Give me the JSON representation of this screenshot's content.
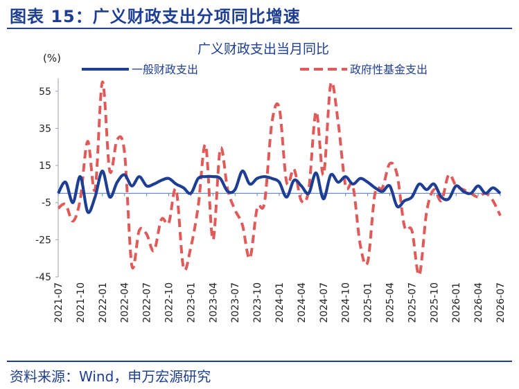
{
  "figure": {
    "title": "图表 15：广义财政支出分项同比增速",
    "source": "资料来源：Wind，申万宏源研究"
  },
  "chart_data": {
    "type": "line",
    "title": "广义财政支出当月同比",
    "ylabel": "(%)",
    "ylim": [
      -45,
      62
    ],
    "yticks": [
      55,
      35,
      15,
      -5,
      -25,
      -45
    ],
    "xtick_labels": [
      "2021-07",
      "2021-10",
      "2022-01",
      "2022-04",
      "2022-07",
      "2022-10",
      "2023-01",
      "2023-04",
      "2023-07",
      "2023-10",
      "2024-01",
      "2024-04",
      "2024-07",
      "2024-10",
      "2025-01",
      "2025-04",
      "2025-07",
      "2025-10",
      "2026-01",
      "2026-04",
      "2026-07"
    ],
    "x": [
      "2021-07",
      "2021-08",
      "2021-09",
      "2021-10",
      "2021-11",
      "2021-12",
      "2022-01",
      "2022-02",
      "2022-03",
      "2022-04",
      "2022-05",
      "2022-06",
      "2022-07",
      "2022-08",
      "2022-09",
      "2022-10",
      "2022-11",
      "2022-12",
      "2023-01",
      "2023-02",
      "2023-03",
      "2023-04",
      "2023-05",
      "2023-06",
      "2023-07",
      "2023-08",
      "2023-09",
      "2023-10",
      "2023-11",
      "2023-12",
      "2024-01",
      "2024-02",
      "2024-03",
      "2024-04",
      "2024-05",
      "2024-06",
      "2024-07",
      "2024-08",
      "2024-09",
      "2024-10",
      "2024-11",
      "2024-12",
      "2025-01",
      "2025-02",
      "2025-03",
      "2025-04",
      "2025-05",
      "2025-06",
      "2025-07",
      "2025-08",
      "2025-09",
      "2025-10",
      "2025-11",
      "2025-12",
      "2026-01",
      "2026-02",
      "2026-03",
      "2026-04",
      "2026-05",
      "2026-06",
      "2026-07"
    ],
    "legend_position": "top",
    "series": [
      {
        "name": "一般财政支出",
        "color": "#1d3e93",
        "style": "solid",
        "values": [
          0,
          6,
          -5,
          9,
          -10,
          -2,
          12,
          -2,
          6,
          10,
          4,
          9,
          4,
          5,
          7,
          8,
          5,
          3,
          0,
          8,
          9,
          9,
          8,
          1,
          2,
          12,
          5,
          8,
          9,
          8,
          6,
          -2,
          7,
          4,
          0,
          11,
          -3,
          10,
          6,
          9,
          5,
          8,
          6,
          3,
          1,
          4,
          -7,
          -4,
          -2,
          5,
          2,
          5,
          -2,
          -3,
          4,
          1,
          0,
          4,
          0,
          3,
          0
        ]
      },
      {
        "name": "政府性基金支出",
        "color": "#e05a5a",
        "style": "dashed",
        "values": [
          -8,
          -6,
          -15,
          -3,
          28,
          2,
          60,
          12,
          29,
          22,
          -39,
          -20,
          -22,
          -31,
          -14,
          -16,
          2,
          -40,
          -29,
          -7,
          26,
          -25,
          24,
          2,
          -9,
          -17,
          -35,
          -8,
          -5,
          38,
          46,
          6,
          13,
          -4,
          2,
          44,
          10,
          59,
          38,
          4,
          4,
          -28,
          -37,
          0,
          3,
          16,
          10,
          -18,
          -20,
          -44,
          -10,
          2,
          -4,
          10,
          4,
          2,
          0,
          -2,
          0,
          -4,
          -12
        ]
      }
    ]
  }
}
